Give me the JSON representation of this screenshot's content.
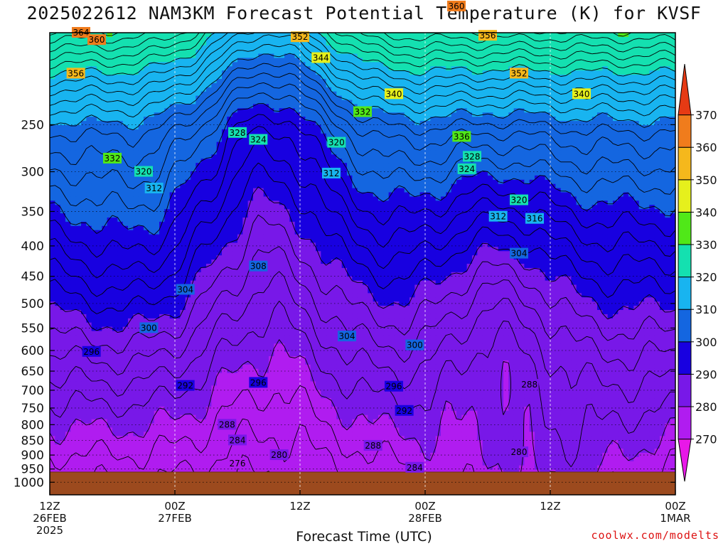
{
  "title": "2025022612 NAM3KM Forecast Potential Temperature (K) for KVSF",
  "credit": "coolwx.com/modelts",
  "chart_data": {
    "type": "heatmap",
    "title": "2025022612 NAM3KM Forecast Potential Temperature (K) for KVSF",
    "xlabel": "Forecast Time (UTC)",
    "ylabel": "",
    "units": "K",
    "log_pressure_axis": true,
    "y_ticks": [
      250,
      300,
      350,
      400,
      450,
      500,
      550,
      600,
      650,
      700,
      750,
      800,
      850,
      900,
      950,
      1000
    ],
    "y_tick_labels": [
      "250",
      "300",
      "350",
      "400",
      "450",
      "500",
      "550",
      "600",
      "650",
      "700",
      "750",
      "800",
      "850",
      "900",
      "950",
      "1000"
    ],
    "x_ticks": [
      0,
      12,
      24,
      36,
      48,
      60
    ],
    "x_tick_labels": [
      [
        "12Z",
        "26FEB",
        "2025"
      ],
      [
        "00Z",
        "27FEB"
      ],
      [
        "12Z"
      ],
      [
        "00Z",
        "28FEB"
      ],
      [
        "12Z"
      ],
      [
        "00Z",
        "1MAR"
      ]
    ],
    "colorbar": {
      "levels": [
        270,
        280,
        290,
        300,
        310,
        320,
        330,
        340,
        350,
        360,
        370
      ],
      "labels": [
        "270",
        "280",
        "290",
        "300",
        "310",
        "320",
        "330",
        "340",
        "350",
        "360",
        "370"
      ],
      "colors": [
        "#e818e8",
        "#b01cf0",
        "#7818e8",
        "#1800e0",
        "#1466e0",
        "#18b4f0",
        "#14e0b0",
        "#50e818",
        "#e6f01c",
        "#f5b81c",
        "#f07c1c",
        "#e63a14"
      ]
    },
    "contour_interval": 2,
    "grid": true,
    "contour_labels": [
      {
        "t": 3,
        "p": 175,
        "v": "364"
      },
      {
        "t": 4.5,
        "p": 180,
        "v": "360"
      },
      {
        "t": 2.5,
        "p": 205,
        "v": "356"
      },
      {
        "t": 24,
        "p": 178,
        "v": "352"
      },
      {
        "t": 26,
        "p": 193,
        "v": "344"
      },
      {
        "t": 39,
        "p": 158,
        "v": "360"
      },
      {
        "t": 42,
        "p": 177,
        "v": "356"
      },
      {
        "t": 45,
        "p": 205,
        "v": "352"
      },
      {
        "t": 51,
        "p": 222,
        "v": "340"
      },
      {
        "t": 33,
        "p": 222,
        "v": "340"
      },
      {
        "t": 30,
        "p": 238,
        "v": "332"
      },
      {
        "t": 18,
        "p": 258,
        "v": "328"
      },
      {
        "t": 20,
        "p": 265,
        "v": "324"
      },
      {
        "t": 27.5,
        "p": 268,
        "v": "320"
      },
      {
        "t": 39.5,
        "p": 262,
        "v": "336"
      },
      {
        "t": 40.5,
        "p": 283,
        "v": "328"
      },
      {
        "t": 40,
        "p": 297,
        "v": "324"
      },
      {
        "t": 6,
        "p": 285,
        "v": "332"
      },
      {
        "t": 9,
        "p": 300,
        "v": "320"
      },
      {
        "t": 27,
        "p": 302,
        "v": "312"
      },
      {
        "t": 10,
        "p": 320,
        "v": "312"
      },
      {
        "t": 45,
        "p": 335,
        "v": "320"
      },
      {
        "t": 43,
        "p": 357,
        "v": "312"
      },
      {
        "t": 46.5,
        "p": 360,
        "v": "316"
      },
      {
        "t": 45,
        "p": 412,
        "v": "304"
      },
      {
        "t": 20,
        "p": 433,
        "v": "308"
      },
      {
        "t": 13,
        "p": 474,
        "v": "304"
      },
      {
        "t": 9.5,
        "p": 550,
        "v": "300"
      },
      {
        "t": 28.5,
        "p": 568,
        "v": "304"
      },
      {
        "t": 4,
        "p": 603,
        "v": "296"
      },
      {
        "t": 35,
        "p": 588,
        "v": "300"
      },
      {
        "t": 13,
        "p": 688,
        "v": "292"
      },
      {
        "t": 20,
        "p": 680,
        "v": "296"
      },
      {
        "t": 33,
        "p": 690,
        "v": "296"
      },
      {
        "t": 46,
        "p": 685,
        "v": "288"
      },
      {
        "t": 34,
        "p": 758,
        "v": "292"
      },
      {
        "t": 17,
        "p": 800,
        "v": "288"
      },
      {
        "t": 18,
        "p": 850,
        "v": "284"
      },
      {
        "t": 31,
        "p": 868,
        "v": "288"
      },
      {
        "t": 22,
        "p": 900,
        "v": "280"
      },
      {
        "t": 45,
        "p": 890,
        "v": "280"
      },
      {
        "t": 18,
        "p": 930,
        "v": "276"
      },
      {
        "t": 35,
        "p": 945,
        "v": "284"
      }
    ]
  }
}
